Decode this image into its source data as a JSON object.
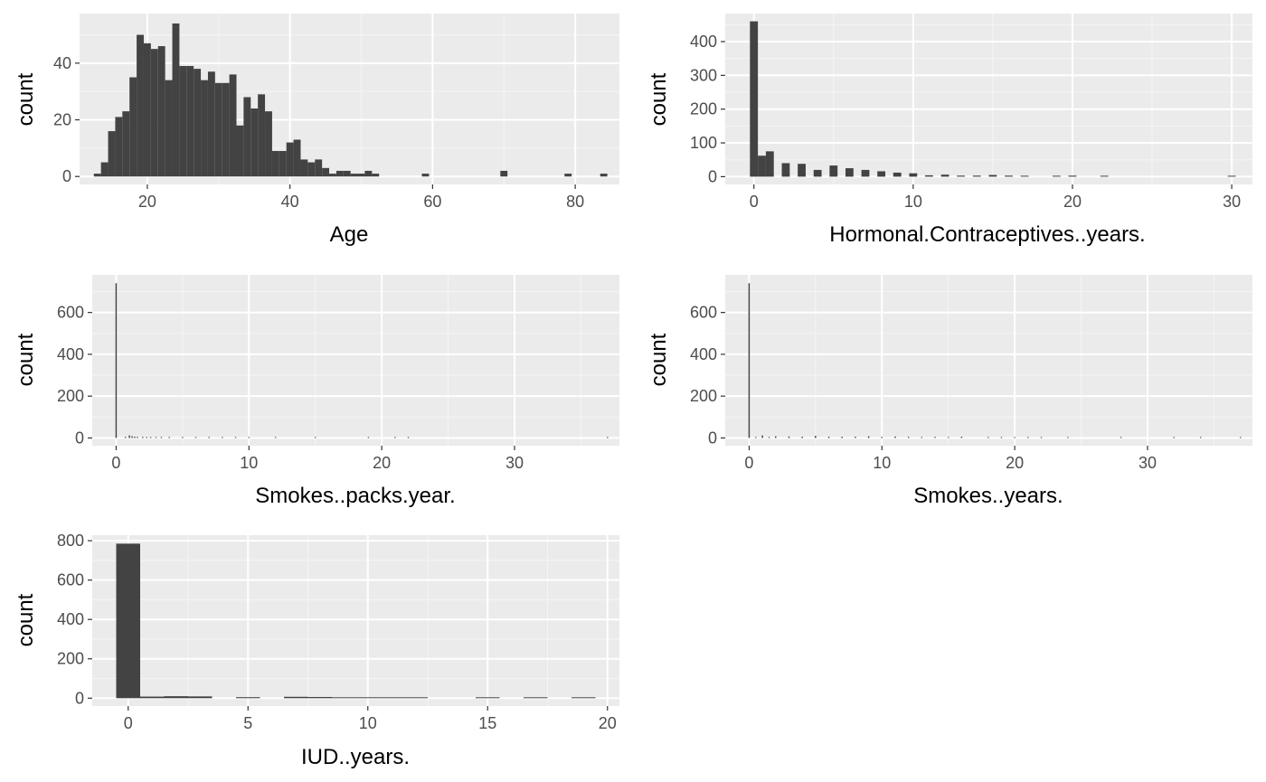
{
  "chart_data": [
    {
      "type": "bar",
      "xlabel": "Age",
      "ylabel": "count",
      "xlim": [
        10.5,
        86.2
      ],
      "ylim": [
        -2.8,
        57.5
      ],
      "xticks": [
        20,
        40,
        60,
        80
      ],
      "yticks": [
        0,
        20,
        40
      ],
      "grid": true,
      "bin_width": 1,
      "bars": [
        {
          "x": 13,
          "count": 1
        },
        {
          "x": 14,
          "count": 5
        },
        {
          "x": 15,
          "count": 16
        },
        {
          "x": 16,
          "count": 21
        },
        {
          "x": 17,
          "count": 23
        },
        {
          "x": 18,
          "count": 35
        },
        {
          "x": 19,
          "count": 50
        },
        {
          "x": 20,
          "count": 47
        },
        {
          "x": 21,
          "count": 45
        },
        {
          "x": 22,
          "count": 46
        },
        {
          "x": 23,
          "count": 34
        },
        {
          "x": 24,
          "count": 54
        },
        {
          "x": 25,
          "count": 39
        },
        {
          "x": 26,
          "count": 39
        },
        {
          "x": 27,
          "count": 38
        },
        {
          "x": 28,
          "count": 34
        },
        {
          "x": 29,
          "count": 37
        },
        {
          "x": 30,
          "count": 33
        },
        {
          "x": 31,
          "count": 33
        },
        {
          "x": 32,
          "count": 36
        },
        {
          "x": 33,
          "count": 18
        },
        {
          "x": 34,
          "count": 28
        },
        {
          "x": 35,
          "count": 24
        },
        {
          "x": 36,
          "count": 29
        },
        {
          "x": 37,
          "count": 23
        },
        {
          "x": 38,
          "count": 9
        },
        {
          "x": 39,
          "count": 9
        },
        {
          "x": 40,
          "count": 12
        },
        {
          "x": 41,
          "count": 13
        },
        {
          "x": 42,
          "count": 6
        },
        {
          "x": 43,
          "count": 5
        },
        {
          "x": 44,
          "count": 6
        },
        {
          "x": 45,
          "count": 3
        },
        {
          "x": 46,
          "count": 1
        },
        {
          "x": 47,
          "count": 2
        },
        {
          "x": 48,
          "count": 2
        },
        {
          "x": 49,
          "count": 1
        },
        {
          "x": 50,
          "count": 1
        },
        {
          "x": 51,
          "count": 2
        },
        {
          "x": 52,
          "count": 1
        },
        {
          "x": 59,
          "count": 1
        },
        {
          "x": 70,
          "count": 2
        },
        {
          "x": 79,
          "count": 1
        },
        {
          "x": 84,
          "count": 1
        }
      ]
    },
    {
      "type": "bar",
      "xlabel": "Hormonal.Contraceptives..years.",
      "ylabel": "count",
      "xlim": [
        -1.8,
        31.3
      ],
      "ylim": [
        -23,
        483
      ],
      "xticks": [
        0,
        10,
        20,
        30
      ],
      "yticks": [
        0,
        100,
        200,
        300,
        400
      ],
      "grid": true,
      "bin_width": 0.5,
      "bars": [
        {
          "x": 0,
          "count": 460
        },
        {
          "x": 0.5,
          "count": 62
        },
        {
          "x": 1,
          "count": 75
        },
        {
          "x": 2,
          "count": 40
        },
        {
          "x": 3,
          "count": 38
        },
        {
          "x": 4,
          "count": 20
        },
        {
          "x": 5,
          "count": 33
        },
        {
          "x": 6,
          "count": 25
        },
        {
          "x": 7,
          "count": 20
        },
        {
          "x": 8,
          "count": 16
        },
        {
          "x": 9,
          "count": 12
        },
        {
          "x": 10,
          "count": 10
        },
        {
          "x": 11,
          "count": 4
        },
        {
          "x": 12,
          "count": 6
        },
        {
          "x": 13,
          "count": 3
        },
        {
          "x": 14,
          "count": 3
        },
        {
          "x": 15,
          "count": 5
        },
        {
          "x": 16,
          "count": 3
        },
        {
          "x": 17,
          "count": 2
        },
        {
          "x": 19,
          "count": 2
        },
        {
          "x": 20,
          "count": 3
        },
        {
          "x": 22,
          "count": 2
        },
        {
          "x": 30,
          "count": 1
        }
      ]
    },
    {
      "type": "bar",
      "xlabel": "Smokes..packs.year.",
      "ylabel": "count",
      "xlim": [
        -1.8,
        37.9
      ],
      "ylim": [
        -37,
        780
      ],
      "xticks": [
        0,
        10,
        20,
        30
      ],
      "yticks": [
        0,
        200,
        400,
        600
      ],
      "grid": true,
      "bin_width": 0.1,
      "bars": [
        {
          "x": 0,
          "count": 740
        },
        {
          "x": 0.7,
          "count": 5
        },
        {
          "x": 1,
          "count": 12
        },
        {
          "x": 1.2,
          "count": 8
        },
        {
          "x": 1.4,
          "count": 6
        },
        {
          "x": 1.6,
          "count": 5
        },
        {
          "x": 2,
          "count": 5
        },
        {
          "x": 2.3,
          "count": 4
        },
        {
          "x": 2.6,
          "count": 4
        },
        {
          "x": 3,
          "count": 4
        },
        {
          "x": 3.4,
          "count": 3
        },
        {
          "x": 4,
          "count": 3
        },
        {
          "x": 5,
          "count": 4
        },
        {
          "x": 6,
          "count": 3
        },
        {
          "x": 7,
          "count": 2
        },
        {
          "x": 8,
          "count": 3
        },
        {
          "x": 9,
          "count": 2
        },
        {
          "x": 10,
          "count": 2
        },
        {
          "x": 12,
          "count": 2
        },
        {
          "x": 15,
          "count": 1
        },
        {
          "x": 19,
          "count": 1
        },
        {
          "x": 21,
          "count": 2
        },
        {
          "x": 22,
          "count": 1
        },
        {
          "x": 37,
          "count": 1
        }
      ]
    },
    {
      "type": "bar",
      "xlabel": "Smokes..years.",
      "ylabel": "count",
      "xlim": [
        -1.8,
        37.9
      ],
      "ylim": [
        -37,
        780
      ],
      "xticks": [
        0,
        10,
        20,
        30
      ],
      "yticks": [
        0,
        200,
        400,
        600
      ],
      "grid": true,
      "bin_width": 0.1,
      "bars": [
        {
          "x": 0,
          "count": 740
        },
        {
          "x": 0.5,
          "count": 4
        },
        {
          "x": 1,
          "count": 12
        },
        {
          "x": 1.5,
          "count": 4
        },
        {
          "x": 2,
          "count": 8
        },
        {
          "x": 3,
          "count": 7
        },
        {
          "x": 4,
          "count": 6
        },
        {
          "x": 5,
          "count": 10
        },
        {
          "x": 6,
          "count": 6
        },
        {
          "x": 7,
          "count": 6
        },
        {
          "x": 8,
          "count": 6
        },
        {
          "x": 9,
          "count": 8
        },
        {
          "x": 10,
          "count": 5
        },
        {
          "x": 11,
          "count": 7
        },
        {
          "x": 12,
          "count": 5
        },
        {
          "x": 13,
          "count": 4
        },
        {
          "x": 14,
          "count": 5
        },
        {
          "x": 15,
          "count": 4
        },
        {
          "x": 16,
          "count": 6
        },
        {
          "x": 18,
          "count": 3
        },
        {
          "x": 19,
          "count": 4
        },
        {
          "x": 20,
          "count": 3
        },
        {
          "x": 21,
          "count": 3
        },
        {
          "x": 22,
          "count": 3
        },
        {
          "x": 24,
          "count": 2
        },
        {
          "x": 28,
          "count": 1
        },
        {
          "x": 32,
          "count": 2
        },
        {
          "x": 34,
          "count": 1
        },
        {
          "x": 37,
          "count": 1
        }
      ]
    },
    {
      "type": "bar",
      "xlabel": "IUD..years.",
      "ylabel": "count",
      "xlim": [
        -1.5,
        20.5
      ],
      "ylim": [
        -40,
        828
      ],
      "xticks": [
        0,
        5,
        10,
        15,
        20
      ],
      "yticks": [
        0,
        200,
        400,
        600,
        800
      ],
      "grid": true,
      "bin_width": 1,
      "bars": [
        {
          "x": 0,
          "count": 785
        },
        {
          "x": 1,
          "count": 8
        },
        {
          "x": 2,
          "count": 10
        },
        {
          "x": 3,
          "count": 9
        },
        {
          "x": 5,
          "count": 5
        },
        {
          "x": 7,
          "count": 7
        },
        {
          "x": 8,
          "count": 6
        },
        {
          "x": 9,
          "count": 3
        },
        {
          "x": 10,
          "count": 3
        },
        {
          "x": 11,
          "count": 3
        },
        {
          "x": 12,
          "count": 2
        },
        {
          "x": 15,
          "count": 2
        },
        {
          "x": 17,
          "count": 2
        },
        {
          "x": 19,
          "count": 2
        }
      ]
    }
  ]
}
